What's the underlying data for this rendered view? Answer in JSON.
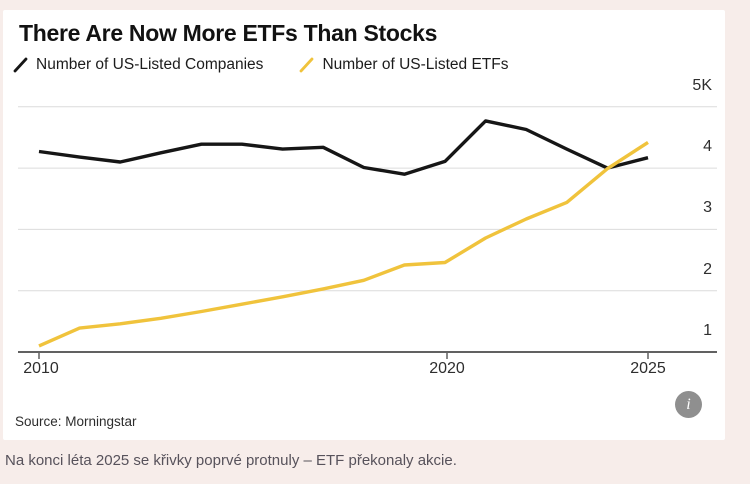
{
  "page": {
    "background_color": "#f7edea",
    "caption": "Na konci léta 2025 se křivky poprvé protnuly – ETF překonaly akcie."
  },
  "card": {
    "title": "There Are Now More ETFs Than Stocks",
    "source": "Source: Morningstar",
    "info_icon_glyph": "i"
  },
  "legend": {
    "items": [
      {
        "label": "Number of US-Listed Companies",
        "color": "#161616"
      },
      {
        "label": "Number of US-Listed ETFs",
        "color": "#f0c33c"
      }
    ]
  },
  "axes": {
    "y_labels": [
      "5K",
      "4",
      "3",
      "2",
      "1"
    ],
    "x_labels": [
      "2010",
      "2020",
      "2025"
    ]
  },
  "chart_data": {
    "type": "line",
    "title": "There Are Now More ETFs Than Stocks",
    "x": [
      2010,
      2011,
      2012,
      2013,
      2014,
      2015,
      2016,
      2017,
      2018,
      2019,
      2020,
      2021,
      2022,
      2023,
      2024,
      2025
    ],
    "series": [
      {
        "name": "Number of US-Listed Companies",
        "color": "#161616",
        "values": [
          4270,
          4180,
          4100,
          4250,
          4390,
          4390,
          4310,
          4340,
          4010,
          3900,
          4110,
          4770,
          4630,
          4310,
          4000,
          4170
        ]
      },
      {
        "name": "Number of US-Listed ETFs",
        "color": "#f0c33c",
        "values": [
          1100,
          1390,
          1460,
          1550,
          1660,
          1780,
          1900,
          2030,
          2170,
          2420,
          2460,
          2860,
          3170,
          3440,
          3990,
          4420
        ]
      }
    ],
    "xlabel": "",
    "ylabel": "",
    "ylim": [
      1000,
      5000
    ],
    "xlim": [
      2010,
      2025
    ],
    "yticks": [
      1000,
      2000,
      3000,
      4000,
      5000
    ],
    "xticks": [
      2010,
      2020,
      2025
    ],
    "grid": "horizontal",
    "legend_position": "top-left",
    "source": "Source: Morningstar"
  }
}
